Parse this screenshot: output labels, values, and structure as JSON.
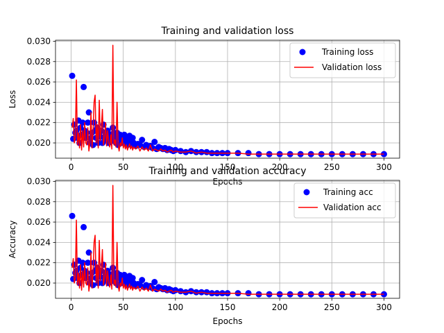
{
  "chart_data": [
    {
      "type": "scatter+line",
      "title": "Training and validation loss",
      "xlabel": "Epochs",
      "ylabel": "Loss",
      "xlim": [
        -15,
        315
      ],
      "ylim": [
        0.0185,
        0.0301
      ],
      "xticks": [
        0,
        50,
        100,
        150,
        200,
        250,
        300
      ],
      "yticks": [
        0.02,
        0.022,
        0.024,
        0.026,
        0.028,
        0.03
      ],
      "ytick_labels": [
        "0.020",
        "0.022",
        "0.024",
        "0.026",
        "0.028",
        "0.030"
      ],
      "grid": true,
      "legend": "top-right",
      "series": [
        {
          "name": "Training loss",
          "kind": "scatter",
          "color": "#0000ff",
          "ref": "train"
        },
        {
          "name": "Validation loss",
          "kind": "line",
          "color": "#ff0000",
          "ref": "val"
        }
      ]
    },
    {
      "type": "scatter+line",
      "title": "Training and validation accuracy",
      "xlabel": "Epochs",
      "ylabel": "Accuracy",
      "xlim": [
        -15,
        315
      ],
      "ylim": [
        0.0185,
        0.0301
      ],
      "xticks": [
        0,
        50,
        100,
        150,
        200,
        250,
        300
      ],
      "yticks": [
        0.02,
        0.022,
        0.024,
        0.026,
        0.028,
        0.03
      ],
      "ytick_labels": [
        "0.020",
        "0.022",
        "0.024",
        "0.026",
        "0.028",
        "0.030"
      ],
      "grid": true,
      "legend": "top-right",
      "series": [
        {
          "name": "Training acc",
          "kind": "scatter",
          "color": "#0000ff",
          "ref": "train"
        },
        {
          "name": "Validation acc",
          "kind": "line",
          "color": "#ff0000",
          "ref": "val"
        }
      ]
    }
  ],
  "series_values": {
    "x": [
      1,
      2,
      3,
      4,
      5,
      6,
      7,
      8,
      9,
      10,
      11,
      12,
      13,
      14,
      15,
      16,
      17,
      18,
      19,
      20,
      21,
      22,
      23,
      24,
      25,
      26,
      27,
      28,
      29,
      30,
      31,
      32,
      33,
      34,
      35,
      36,
      37,
      38,
      39,
      40,
      41,
      42,
      43,
      44,
      45,
      46,
      47,
      48,
      49,
      50,
      51,
      52,
      53,
      54,
      55,
      56,
      57,
      58,
      59,
      60,
      62,
      64,
      66,
      68,
      70,
      72,
      74,
      76,
      78,
      80,
      82,
      84,
      86,
      88,
      90,
      92,
      94,
      96,
      98,
      100,
      105,
      110,
      115,
      120,
      125,
      130,
      135,
      140,
      145,
      150,
      160,
      170,
      180,
      190,
      200,
      210,
      220,
      230,
      240,
      250,
      260,
      270,
      280,
      290,
      300
    ],
    "train": [
      0.0266,
      0.0204,
      0.0218,
      0.021,
      0.0212,
      0.0205,
      0.0222,
      0.02,
      0.0215,
      0.0208,
      0.022,
      0.0255,
      0.0212,
      0.0205,
      0.021,
      0.022,
      0.023,
      0.02,
      0.0205,
      0.021,
      0.0198,
      0.022,
      0.0212,
      0.0205,
      0.0215,
      0.02,
      0.021,
      0.0206,
      0.0212,
      0.02,
      0.0218,
      0.0205,
      0.021,
      0.0203,
      0.0212,
      0.02,
      0.0205,
      0.0208,
      0.0202,
      0.0215,
      0.021,
      0.0205,
      0.02,
      0.021,
      0.0198,
      0.0205,
      0.0208,
      0.02,
      0.0206,
      0.0203,
      0.0208,
      0.02,
      0.0205,
      0.0198,
      0.0202,
      0.0207,
      0.02,
      0.0198,
      0.0205,
      0.02,
      0.0197,
      0.0199,
      0.0198,
      0.0203,
      0.0196,
      0.0198,
      0.0196,
      0.0197,
      0.0195,
      0.0201,
      0.0194,
      0.0196,
      0.0195,
      0.0194,
      0.0195,
      0.0193,
      0.0194,
      0.0193,
      0.0192,
      0.0193,
      0.0192,
      0.0191,
      0.0192,
      0.0191,
      0.0191,
      0.0191,
      0.019,
      0.019,
      0.019,
      0.019,
      0.019,
      0.019,
      0.0189,
      0.0189,
      0.0189,
      0.0189,
      0.0189,
      0.0189,
      0.0189,
      0.0189,
      0.0189,
      0.0189,
      0.0189,
      0.0189,
      0.0189
    ],
    "val": [
      0.0215,
      0.0224,
      0.02,
      0.0205,
      0.0262,
      0.0198,
      0.021,
      0.0195,
      0.0218,
      0.0193,
      0.0212,
      0.0196,
      0.022,
      0.02,
      0.0198,
      0.0215,
      0.0192,
      0.02,
      0.023,
      0.0195,
      0.021,
      0.024,
      0.0247,
      0.02,
      0.0218,
      0.0195,
      0.0242,
      0.0202,
      0.0215,
      0.0233,
      0.0198,
      0.0205,
      0.022,
      0.0197,
      0.0212,
      0.02,
      0.0196,
      0.0208,
      0.0194,
      0.0296,
      0.0198,
      0.0203,
      0.0196,
      0.024,
      0.0198,
      0.0192,
      0.02,
      0.0197,
      0.0205,
      0.0195,
      0.0199,
      0.0194,
      0.0198,
      0.0193,
      0.0196,
      0.0199,
      0.0194,
      0.0197,
      0.0193,
      0.0196,
      0.0194,
      0.0197,
      0.0192,
      0.0196,
      0.0193,
      0.0195,
      0.0192,
      0.0198,
      0.0192,
      0.0194,
      0.0193,
      0.0192,
      0.0194,
      0.0192,
      0.0193,
      0.0191,
      0.0192,
      0.0193,
      0.0191,
      0.0192,
      0.0191,
      0.0191,
      0.0192,
      0.019,
      0.0191,
      0.019,
      0.019,
      0.019,
      0.019,
      0.019,
      0.019,
      0.0189,
      0.0189,
      0.0189,
      0.0189,
      0.0189,
      0.0189,
      0.0189,
      0.0189,
      0.0189,
      0.0189,
      0.0189,
      0.0189,
      0.0189,
      0.0189
    ]
  }
}
